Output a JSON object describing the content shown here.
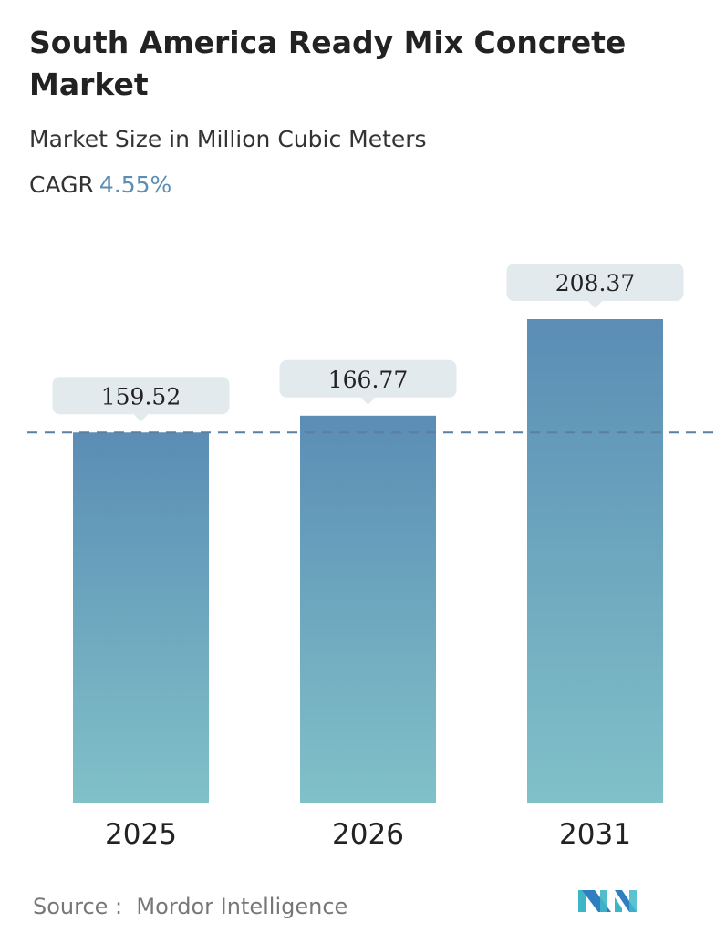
{
  "title": "South America Ready Mix Concrete Market",
  "subtitle": "Market Size in Million Cubic Meters",
  "cagr_label": "CAGR",
  "cagr_value": "4.55%",
  "source_label": "Source :",
  "source_value": "Mordor Intelligence",
  "colors": {
    "bar_top": "#5b8db5",
    "bar_bottom": "#80c1c8",
    "accent": "#5b8db5",
    "label_box": "#e3eaee"
  },
  "chart_data": {
    "type": "bar",
    "categories": [
      "2025",
      "2026",
      "2031"
    ],
    "values": [
      159.52,
      166.77,
      208.37
    ],
    "labels": [
      "159.52",
      "166.77",
      "208.37"
    ],
    "ylim": [
      0,
      208.37
    ],
    "reference_line": 159.52,
    "grid": false
  }
}
